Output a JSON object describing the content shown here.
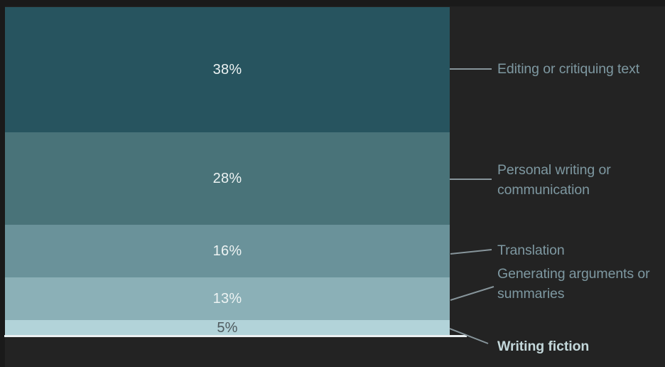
{
  "chart_data": {
    "type": "bar",
    "subtype": "single-stacked-vertical-bar",
    "title": "",
    "unit": "%",
    "categories": [
      "Editing or critiquing text",
      "Personal writing or communication",
      "Translation",
      "Generating arguments or summaries",
      "Writing fiction"
    ],
    "values": [
      38,
      28,
      16,
      13,
      5
    ],
    "segments": [
      {
        "label": "Editing or critiquing text",
        "value": 38,
        "value_label": "38%",
        "color": "#27545f",
        "value_text_color": "#edf3f3",
        "label_highlight": false
      },
      {
        "label": "Personal writing or communication",
        "value": 28,
        "value_label": "28%",
        "color": "#497379",
        "value_text_color": "#edf3f3",
        "label_highlight": false
      },
      {
        "label": "Translation",
        "value": 16,
        "value_label": "16%",
        "color": "#6a929a",
        "value_text_color": "#edf3f3",
        "label_highlight": false
      },
      {
        "label": "Generating arguments or summaries",
        "value": 13,
        "value_label": "13%",
        "color": "#8bb0b7",
        "value_text_color": "#edf3f3",
        "label_highlight": false
      },
      {
        "label": "Writing fiction",
        "value": 5,
        "value_label": "5%",
        "color": "#b2d3d9",
        "value_text_color": "#4f5a5e",
        "label_highlight": true
      }
    ],
    "legend_position": "right-callouts",
    "grid": false,
    "colors": {
      "background": "#232323",
      "baseline": "#eaeff1",
      "leader_line": "#87959b",
      "callout_label": "#7e98a1",
      "callout_label_highlight": "#c3d7da"
    }
  }
}
